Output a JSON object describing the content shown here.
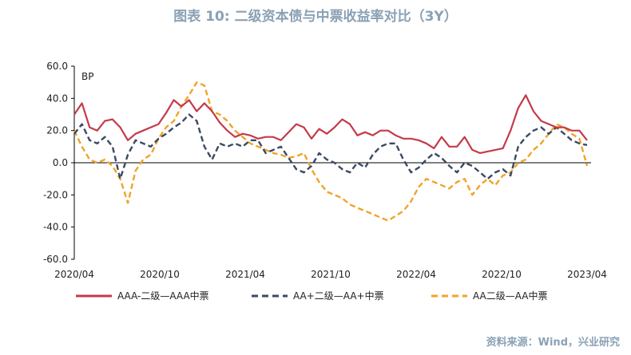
{
  "page": {
    "title": "图表 10: 二级资本债与中票收益率对比（3Y）",
    "source": "资料来源：Wind，兴业研究"
  },
  "chart_data": {
    "type": "line",
    "title": "图表 10: 二级资本债与中票收益率对比（3Y）",
    "unit_label": "BP",
    "ylim": [
      -60,
      60
    ],
    "y_ticks": [
      60,
      40,
      20,
      0,
      -20,
      -40,
      -60
    ],
    "y_tick_labels": [
      "60.0",
      "40.0",
      "20.0",
      "0.0",
      "-20.0",
      "-40.0",
      "-60.0"
    ],
    "x_tick_labels": [
      "2020/04",
      "2020/10",
      "2021/04",
      "2021/10",
      "2022/04",
      "2022/10",
      "2023/04"
    ],
    "grid": false,
    "legend_position": "bottom",
    "series": [
      {
        "name": "AAA-二级—AAA中票",
        "color": "#c43a4a",
        "style": "solid",
        "points": [
          [
            0,
            30
          ],
          [
            1,
            37
          ],
          [
            2,
            22
          ],
          [
            3,
            20
          ],
          [
            4,
            26
          ],
          [
            5,
            27
          ],
          [
            6,
            22
          ],
          [
            7,
            14
          ],
          [
            8,
            18
          ],
          [
            9,
            20
          ],
          [
            10,
            22
          ],
          [
            11,
            24
          ],
          [
            12,
            31
          ],
          [
            13,
            39
          ],
          [
            14,
            35
          ],
          [
            15,
            39
          ],
          [
            16,
            32
          ],
          [
            17,
            37
          ],
          [
            18,
            32
          ],
          [
            19,
            25
          ],
          [
            20,
            20
          ],
          [
            21,
            16
          ],
          [
            22,
            18
          ],
          [
            23,
            17
          ],
          [
            24,
            15
          ],
          [
            25,
            16
          ],
          [
            26,
            16
          ],
          [
            27,
            14
          ],
          [
            28,
            19
          ],
          [
            29,
            24
          ],
          [
            30,
            22
          ],
          [
            31,
            15
          ],
          [
            32,
            21
          ],
          [
            33,
            18
          ],
          [
            34,
            22
          ],
          [
            35,
            27
          ],
          [
            36,
            24
          ],
          [
            37,
            17
          ],
          [
            38,
            19
          ],
          [
            39,
            17
          ],
          [
            40,
            20
          ],
          [
            41,
            20
          ],
          [
            42,
            17
          ],
          [
            43,
            15
          ],
          [
            44,
            15
          ],
          [
            45,
            14
          ],
          [
            46,
            12
          ],
          [
            47,
            9
          ],
          [
            48,
            16
          ],
          [
            49,
            10
          ],
          [
            50,
            10
          ],
          [
            51,
            16
          ],
          [
            52,
            8
          ],
          [
            53,
            6
          ],
          [
            54,
            7
          ],
          [
            55,
            8
          ],
          [
            56,
            9
          ],
          [
            57,
            20
          ],
          [
            58,
            34
          ],
          [
            59,
            42
          ],
          [
            60,
            32
          ],
          [
            61,
            26
          ],
          [
            62,
            24
          ],
          [
            63,
            22
          ],
          [
            64,
            22
          ],
          [
            65,
            20
          ],
          [
            66,
            20
          ],
          [
            67,
            14
          ]
        ]
      },
      {
        "name": "AA+二级—AA+中票",
        "color": "#3a4a63",
        "style": "dashed",
        "points": [
          [
            0,
            18
          ],
          [
            1,
            24
          ],
          [
            2,
            14
          ],
          [
            3,
            12
          ],
          [
            4,
            16
          ],
          [
            5,
            10
          ],
          [
            6,
            -10
          ],
          [
            7,
            5
          ],
          [
            8,
            14
          ],
          [
            9,
            12
          ],
          [
            10,
            10
          ],
          [
            11,
            15
          ],
          [
            12,
            18
          ],
          [
            13,
            22
          ],
          [
            14,
            25
          ],
          [
            15,
            30
          ],
          [
            16,
            26
          ],
          [
            17,
            10
          ],
          [
            18,
            2
          ],
          [
            19,
            12
          ],
          [
            20,
            10
          ],
          [
            21,
            12
          ],
          [
            22,
            10
          ],
          [
            23,
            14
          ],
          [
            24,
            14
          ],
          [
            25,
            6
          ],
          [
            26,
            8
          ],
          [
            27,
            10
          ],
          [
            28,
            3
          ],
          [
            29,
            -4
          ],
          [
            30,
            -6
          ],
          [
            31,
            -2
          ],
          [
            32,
            6
          ],
          [
            33,
            2
          ],
          [
            34,
            0
          ],
          [
            35,
            -4
          ],
          [
            36,
            -6
          ],
          [
            37,
            0
          ],
          [
            38,
            -3
          ],
          [
            39,
            5
          ],
          [
            40,
            10
          ],
          [
            41,
            12
          ],
          [
            42,
            12
          ],
          [
            43,
            2
          ],
          [
            44,
            -6
          ],
          [
            45,
            -3
          ],
          [
            46,
            2
          ],
          [
            47,
            6
          ],
          [
            48,
            3
          ],
          [
            49,
            -2
          ],
          [
            50,
            -6
          ],
          [
            51,
            0
          ],
          [
            52,
            -2
          ],
          [
            53,
            -6
          ],
          [
            54,
            -10
          ],
          [
            55,
            -6
          ],
          [
            56,
            -4
          ],
          [
            57,
            -8
          ],
          [
            58,
            10
          ],
          [
            59,
            16
          ],
          [
            60,
            20
          ],
          [
            61,
            22
          ],
          [
            62,
            18
          ],
          [
            63,
            22
          ],
          [
            64,
            18
          ],
          [
            65,
            14
          ],
          [
            66,
            12
          ],
          [
            67,
            11
          ]
        ]
      },
      {
        "name": "AA二级—AA中票",
        "color": "#f0a428",
        "style": "dashed",
        "points": [
          [
            0,
            20
          ],
          [
            1,
            10
          ],
          [
            2,
            2
          ],
          [
            3,
            0
          ],
          [
            4,
            2
          ],
          [
            5,
            -2
          ],
          [
            6,
            -10
          ],
          [
            7,
            -25
          ],
          [
            8,
            -5
          ],
          [
            9,
            2
          ],
          [
            10,
            5
          ],
          [
            11,
            15
          ],
          [
            12,
            22
          ],
          [
            13,
            26
          ],
          [
            14,
            35
          ],
          [
            15,
            42
          ],
          [
            16,
            50
          ],
          [
            17,
            48
          ],
          [
            18,
            32
          ],
          [
            19,
            30
          ],
          [
            20,
            26
          ],
          [
            21,
            20
          ],
          [
            22,
            16
          ],
          [
            23,
            12
          ],
          [
            24,
            10
          ],
          [
            25,
            8
          ],
          [
            26,
            6
          ],
          [
            27,
            5
          ],
          [
            28,
            3
          ],
          [
            29,
            4
          ],
          [
            30,
            6
          ],
          [
            31,
            -4
          ],
          [
            32,
            -12
          ],
          [
            33,
            -18
          ],
          [
            34,
            -20
          ],
          [
            35,
            -22
          ],
          [
            36,
            -26
          ],
          [
            37,
            -28
          ],
          [
            38,
            -30
          ],
          [
            39,
            -32
          ],
          [
            40,
            -34
          ],
          [
            41,
            -36
          ],
          [
            42,
            -33
          ],
          [
            43,
            -30
          ],
          [
            44,
            -24
          ],
          [
            45,
            -15
          ],
          [
            46,
            -10
          ],
          [
            47,
            -12
          ],
          [
            48,
            -14
          ],
          [
            49,
            -16
          ],
          [
            50,
            -12
          ],
          [
            51,
            -10
          ],
          [
            52,
            -20
          ],
          [
            53,
            -14
          ],
          [
            54,
            -10
          ],
          [
            55,
            -14
          ],
          [
            56,
            -8
          ],
          [
            57,
            -6
          ],
          [
            58,
            0
          ],
          [
            59,
            2
          ],
          [
            60,
            8
          ],
          [
            61,
            12
          ],
          [
            62,
            18
          ],
          [
            63,
            24
          ],
          [
            64,
            22
          ],
          [
            65,
            18
          ],
          [
            66,
            15
          ],
          [
            67,
            -2
          ]
        ]
      }
    ]
  }
}
